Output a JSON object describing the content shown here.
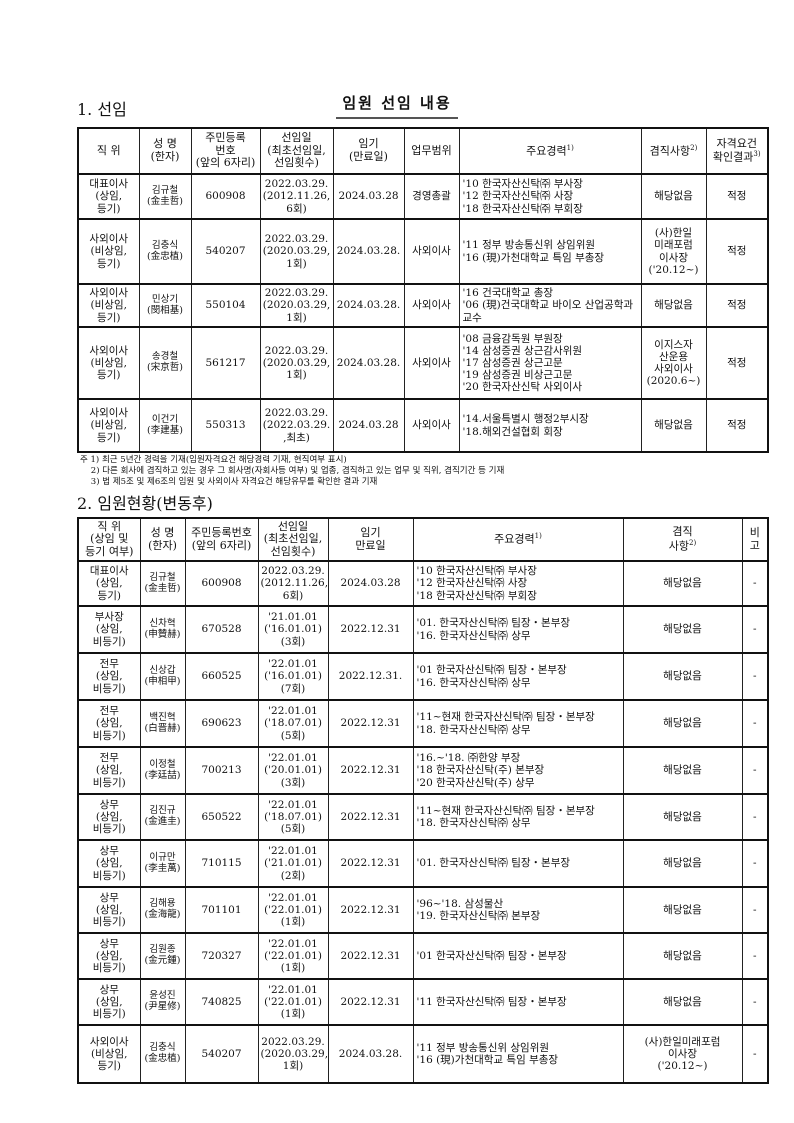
{
  "title": "임원 선임 내용",
  "section1": {
    "heading": "1. 선임",
    "headers": [
      "직  위",
      "성  명\n(한자)",
      "주민등록\n번호\n(앞의 6자리)",
      "선임일\n(최초선임일,\n선임횟수)",
      "임기\n(만료일)",
      "업무범위",
      "주요경력",
      "겸직사항",
      "자격요건\n확인결과"
    ],
    "header_sups": {
      "6": "1)",
      "7": "2)",
      "8": "3)"
    },
    "rows": [
      [
        "대표이사\n(상임,\n등기)",
        "김규철\n(金圭哲)",
        "600908",
        "2022.03.29.\n(2012.11.26,\n6회)",
        "2024.03.28",
        "경영총괄",
        "'10 한국자산신탁㈜ 부사장\n'12 한국자산신탁㈜ 사장\n'18 한국자산신탁㈜ 부회장",
        "해당없음",
        "적정"
      ],
      [
        "사외이사\n(비상임,\n등기)",
        "김충식\n(金忠植)",
        "540207",
        "2022.03.29.\n(2020.03.29,\n1회)",
        "2024.03.28.",
        "사외이사",
        "'11 정부 방송통신위 상임위원\n'16 (現)가천대학교 특임 부총장",
        "(사)한일\n미래포럼\n이사장\n('20.12~)",
        "적정"
      ],
      [
        "사외이사\n(비상임,\n등기)",
        "민상기\n(閔相基)",
        "550104",
        "2022.03.29.\n(2020.03.29,\n1회)",
        "2024.03.28.",
        "사외이사",
        "'16 건국대학교 총장\n'06 (現)건국대학교 바이오 산업공학과 교수",
        "해당없음",
        "적정"
      ],
      [
        "사외이사\n(비상임,\n등기)",
        "송경철\n(宋京哲)",
        "561217",
        "2022.03.29.\n(2020.03.29,\n1회)",
        "2024.03.28.",
        "사외이사",
        "'08 금융감독원 부원장\n'14 삼성증권 상근감사위원\n'17 삼성증권 상근고문\n'19 삼성증권 비상근고문\n'20 한국자산신탁 사외이사",
        "이지스자\n산운용\n사외이사\n(2020.6~)",
        "적정"
      ],
      [
        "사외이사\n(비상임,\n등기)",
        "이건기\n(李建基)",
        "550313",
        "2022.03.29.\n(2022.03.29.\n,최초)",
        "2024.03.28",
        "사외이사",
        "'14.서울특별시 행정2부시장\n'18.해외건설협회 회장",
        "해당없음",
        "적정"
      ]
    ],
    "notes": [
      "주 1) 최근 5년간 경력을 기재(임원자격요건 해당경력 기재, 현직여부 표시)",
      "    2) 다른 회사에 겸직하고 있는 경우 그 회사명(자회사등 여부) 및 업종, 겸직하고 있는 업무 및 직위, 겸직기간 등 기재",
      "    3) 법 제5조 및 제6조의 임원 및 사외이사 자격요건 해당유무를 확인한 결과 기재"
    ]
  },
  "section2": {
    "heading": "2. 임원현황(변동후)",
    "headers": [
      "직  위\n(상임 및\n등기 여부)",
      "성  명\n(한자)",
      "주민등록번호\n(앞의 6자리)",
      "선임일\n(최초선임일,\n선임횟수)",
      "임기\n만료일",
      "주요경력",
      "겸직\n사항",
      "비\n고"
    ],
    "header_sups": {
      "5": "1)",
      "6": "2)"
    },
    "rows": [
      [
        "대표이사\n(상임,\n등기)",
        "김규철\n(金圭哲)",
        "600908",
        "2022.03.29.\n(2012.11.26,\n6회)",
        "2024.03.28",
        "'10 한국자산신탁㈜ 부사장\n'12 한국자산신탁㈜ 사장\n'18 한국자산신탁㈜ 부회장",
        "해당없음",
        "-"
      ],
      [
        "부사장\n(상임,\n비등기)",
        "신차혁\n(申贊赫)",
        "670528",
        "'21.01.01\n('16.01.01)\n(3회)",
        "2022.12.31",
        "'01. 한국자산신탁㈜  팀장・본부장\n'16. 한국자산신탁㈜ 상무",
        "해당없음",
        "-"
      ],
      [
        "전무\n(상임,\n비등기)",
        "신상갑\n(申相甲)",
        "660525",
        "'22.01.01\n('16.01.01)\n(7회)",
        "2022.12.31.",
        "'01 한국자산신탁㈜  팀장・본부장\n'16. 한국자산신탁㈜ 상무",
        "해당없음",
        "-"
      ],
      [
        "전무\n(상임,\n비등기)",
        "백진혁\n(白晋赫)",
        "690623",
        "'22.01.01\n('18.07.01)\n(5회)",
        "2022.12.31",
        "'11~현재 한국자산신탁㈜  팀장・본부장\n'18. 한국자산신탁㈜ 상무",
        "해당없음",
        "-"
      ],
      [
        "전무\n(상임,\n비등기)",
        "이정철\n(李廷喆)",
        "700213",
        "'22.01.01\n('20.01.01)\n(3회)",
        "2022.12.31",
        "'16.~'18. ㈜한양 부장\n'18 한국자산신탁(주) 본부장\n'20 한국자산신탁(주) 상무",
        "해당없음",
        "-"
      ],
      [
        "상무\n(상임,\n비등기)",
        "김진규\n(金進圭)",
        "650522",
        "'22.01.01\n('18.07.01)\n(5회)",
        "2022.12.31",
        "'11~현재 한국자산신탁㈜  팀장・본부장\n'18. 한국자산신탁㈜ 상무",
        "해당없음",
        "-"
      ],
      [
        "상무\n(상임,\n비등기)",
        "이규만\n(李圭萬)",
        "710115",
        "'22.01.01\n('21.01.01)\n(2회)",
        "2022.12.31",
        "'01. 한국자산신탁㈜  팀장・본부장",
        "해당없음",
        "-"
      ],
      [
        "상무\n(상임,\n비등기)",
        "김해용\n(金海龍)",
        "701101",
        "'22.01.01\n('22.01.01)\n(1회)",
        "2022.12.31",
        "'96~'18. 삼성물산\n'19. 한국자산신탁㈜  본부장",
        "해당없음",
        "-"
      ],
      [
        "상무\n(상임,\n비등기)",
        "김원종\n(金元鍾)",
        "720327",
        "'22.01.01\n('22.01.01)\n(1회)",
        "2022.12.31",
        "'01 한국자산신탁㈜  팀장・본부장",
        "해당없음",
        "-"
      ],
      [
        "상무\n(상임,\n비등기)",
        "윤성진\n(尹星修)",
        "740825",
        "'22.01.01\n('22.01.01)\n(1회)",
        "2022.12.31",
        "'11 한국자산신탁㈜  팀장・본부장",
        "해당없음",
        "-"
      ],
      [
        "사외이사\n(비상임,\n등기)",
        "김충식\n(金忠植)",
        "540207",
        "2022.03.29.\n(2020.03.29,\n1회)",
        "2024.03.28.",
        "'11 정부 방송통신위 상임위원\n'16 (現)가천대학교 특임 부총장",
        "(사)한일미래포럼\n이사장\n('20.12~)",
        "-"
      ]
    ]
  }
}
